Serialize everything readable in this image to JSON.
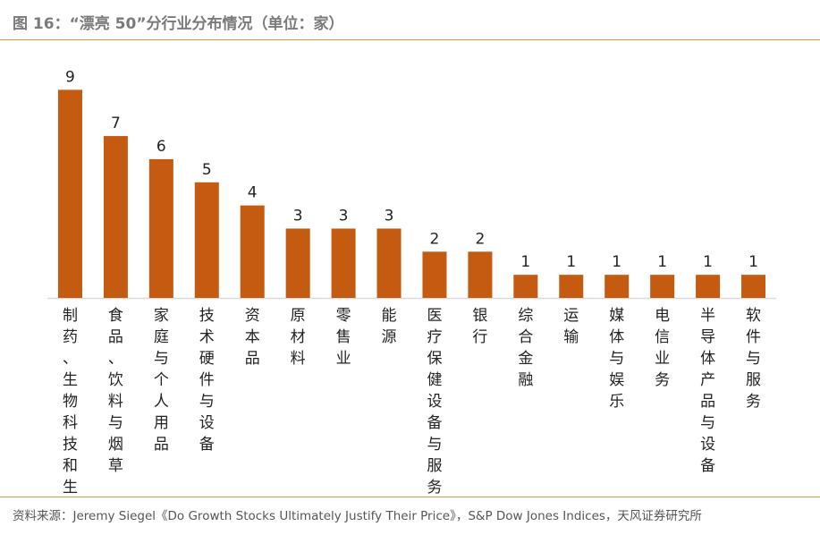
{
  "title": "图 16：“漂亮 50”分行业分布情况（单位：家）",
  "source": "资料来源：Jeremy Siegel《Do Growth Stocks Ultimately Justify Their Price》，S&P Dow Jones Indices，天风证券研究所",
  "colors": {
    "bar": "#c55a11",
    "rule": "#d39a4a",
    "axis": "#d9d9d9",
    "text": "#222222"
  },
  "chart_data": {
    "type": "bar",
    "title": "“漂亮 50”分行业分布情况（单位：家）",
    "xlabel": "",
    "ylabel": "",
    "ylim": [
      0,
      10
    ],
    "grid": false,
    "categories": [
      "制药、生物科技和生…",
      "食品、饮料与烟草",
      "家庭与个人用品",
      "技术硬件与设备",
      "资本品",
      "原材料",
      "零售业",
      "能源",
      "医疗保健设备与服务",
      "银行",
      "综合金融",
      "运输",
      "媒体与娱乐",
      "电信业务",
      "半导体产品与设备",
      "软件与服务"
    ],
    "values": [
      9,
      7,
      6,
      5,
      4,
      3,
      3,
      3,
      2,
      2,
      1,
      1,
      1,
      1,
      1,
      1
    ]
  }
}
